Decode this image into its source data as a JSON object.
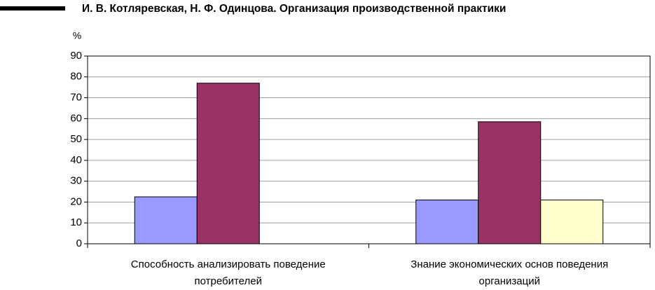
{
  "header": {
    "title": "И. В. Котляревская, Н. Ф. Одинцова. Организация производственной практики"
  },
  "chart_data": {
    "type": "bar",
    "y_label": "%",
    "categories": [
      "Способность анализировать поведение потребителей",
      "Знание экономических основ поведения организаций"
    ],
    "series": [
      {
        "color": "#9999ff",
        "values": [
          22.5,
          21
        ]
      },
      {
        "color": "#993366",
        "values": [
          77,
          58.5
        ]
      },
      {
        "color": "#ffffcc",
        "values": [
          null,
          21
        ]
      }
    ],
    "ylim": [
      0,
      90
    ],
    "yticks": [
      0,
      10,
      20,
      30,
      40,
      50,
      60,
      70,
      80,
      90
    ],
    "grid": true
  }
}
